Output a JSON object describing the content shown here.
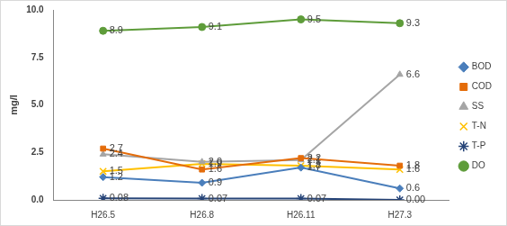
{
  "chart_data": {
    "type": "line",
    "categories": [
      "H26.5",
      "H26.8",
      "H26.11",
      "H27.3"
    ],
    "y_label": "mg/l",
    "ylim": [
      0,
      10
    ],
    "yticks": [
      {
        "value": 0,
        "label": "0.0"
      },
      {
        "value": 2.5,
        "label": "2.5"
      },
      {
        "value": 5,
        "label": "5.0"
      },
      {
        "value": 7.5,
        "label": "7.5"
      },
      {
        "value": 10,
        "label": "10.0"
      }
    ],
    "grid": false,
    "legend": "right",
    "data_labels": true,
    "series": [
      {
        "name": "BOD",
        "color": "#4a7ebb",
        "marker": "diamond",
        "values": [
          1.2,
          0.9,
          1.7,
          0.6
        ],
        "value_labels": [
          "1.2",
          "0.9",
          "1.7",
          "0.6"
        ]
      },
      {
        "name": "COD",
        "color": "#e46c0a",
        "marker": "square",
        "values": [
          2.7,
          1.6,
          2.2,
          1.8
        ],
        "value_labels": [
          "2.7",
          "1.6",
          "2.2",
          "1.8"
        ]
      },
      {
        "name": "SS",
        "color": "#a5a5a5",
        "marker": "triangle",
        "values": [
          2.4,
          2.0,
          2.1,
          6.6
        ],
        "value_labels": [
          "2.4",
          "2.0",
          "2.1",
          "6.6"
        ]
      },
      {
        "name": "T-N",
        "color": "#ffc000",
        "marker": "x",
        "values": [
          1.5,
          1.9,
          1.8,
          1.6
        ],
        "value_labels": [
          "1.5",
          "1.9",
          "1.8",
          "1.6"
        ]
      },
      {
        "name": "T-P",
        "color": "#264478",
        "marker": "star",
        "values": [
          0.08,
          0.07,
          0.07,
          0.0
        ],
        "value_labels": [
          "0.08",
          "0.07",
          "0.07",
          "0.00"
        ]
      },
      {
        "name": "DO",
        "color": "#5e9c3a",
        "marker": "circle",
        "values": [
          8.9,
          9.1,
          9.5,
          9.3
        ],
        "value_labels": [
          "8.9",
          "9.1",
          "9.5",
          "9.3"
        ]
      }
    ]
  }
}
